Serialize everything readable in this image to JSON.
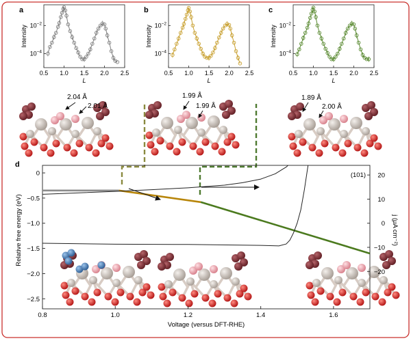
{
  "panel_labels": {
    "a": "a",
    "b": "b",
    "c": "c",
    "d": "d"
  },
  "colors": {
    "frame": "#c9302c",
    "panel_a": "#808080",
    "panel_b": "#c8a030",
    "panel_c": "#5a8a32",
    "dash_b": "#8a8a40",
    "dash_c": "#4e7a30",
    "line_gray": "#8c8c8c",
    "line_gold": "#b8860b",
    "line_green": "#4b7a1e",
    "current": "#222222",
    "atom_dark": "#7a2a30",
    "atom_pink": "#e8a0a8",
    "atom_silver": "#c8c0b8",
    "atom_red": "#d81e1e",
    "atom_blue": "#3a6ea8"
  },
  "structures": {
    "a": {
      "bond1": "2.04 Å",
      "bond2": "2.01 Å"
    },
    "b": {
      "bond1": "1.99 Å",
      "bond2": "1.99 Å"
    },
    "c": {
      "bond1": "1.89 Å",
      "bond2": "2.00 Å"
    }
  },
  "chart_data": [
    {
      "type": "scatter",
      "panel": "a",
      "xlabel": "L",
      "ylabel": "Intensity",
      "xlim": [
        0.5,
        2.5
      ],
      "xticks": [
        "0.5",
        "1.0",
        "1.5",
        "2.0",
        "2.5"
      ],
      "yscale": "log",
      "ylim": [
        1e-05,
        0.3
      ],
      "yticks": [
        {
          "value": 0.01,
          "label": "10",
          "exp": "−2"
        },
        {
          "value": 0.0001,
          "label": "10",
          "exp": "−4"
        }
      ],
      "series": [
        {
          "x": [
            0.6,
            0.65,
            0.7,
            0.75,
            0.8,
            0.85,
            0.88,
            0.92,
            0.95,
            0.98,
            1.0,
            1.03,
            1.06,
            1.1,
            1.15,
            1.2,
            1.25,
            1.3,
            1.35,
            1.4,
            1.45,
            1.5,
            1.55,
            1.6,
            1.65,
            1.7,
            1.75,
            1.8,
            1.85,
            1.9,
            1.95,
            2.0,
            2.03,
            2.07,
            2.12,
            2.17,
            2.22,
            2.27,
            2.32
          ],
          "y": [
            0.0001,
            0.0003,
            0.0006,
            0.0015,
            0.003,
            0.008,
            0.015,
            0.04,
            0.08,
            0.15,
            0.2,
            0.12,
            0.05,
            0.012,
            0.004,
            0.0015,
            0.0006,
            0.00025,
            0.00012,
            6e-05,
            4e-05,
            4e-05,
            6e-05,
            0.0001,
            0.0002,
            0.0005,
            0.0012,
            0.003,
            0.006,
            0.01,
            0.014,
            0.012,
            0.006,
            0.002,
            0.0006,
            0.00015,
            5e-05,
            3e-05,
            2.5e-05
          ]
        }
      ]
    },
    {
      "type": "scatter",
      "panel": "b",
      "xlabel": "L",
      "ylabel": "Intensity",
      "xlim": [
        0.5,
        2.5
      ],
      "xticks": [
        "0.5",
        "1.0",
        "1.5",
        "2.0",
        "2.5"
      ],
      "yscale": "log",
      "ylim": [
        1e-05,
        0.3
      ],
      "yticks": [
        {
          "value": 0.01,
          "label": "10",
          "exp": "−2"
        },
        {
          "value": 0.0001,
          "label": "10",
          "exp": "−4"
        }
      ],
      "series": [
        {
          "x": [
            0.6,
            0.65,
            0.7,
            0.75,
            0.8,
            0.85,
            0.88,
            0.92,
            0.95,
            0.98,
            1.0,
            1.03,
            1.06,
            1.1,
            1.15,
            1.2,
            1.25,
            1.3,
            1.35,
            1.4,
            1.45,
            1.5,
            1.55,
            1.6,
            1.65,
            1.7,
            1.75,
            1.8,
            1.85,
            1.9,
            1.95,
            2.0,
            2.03,
            2.07,
            2.12,
            2.17,
            2.22,
            2.27
          ],
          "y": [
            8e-05,
            0.0002,
            0.0005,
            0.0012,
            0.003,
            0.007,
            0.013,
            0.03,
            0.06,
            0.12,
            0.18,
            0.1,
            0.04,
            0.01,
            0.003,
            0.0012,
            0.0005,
            0.00022,
            0.0001,
            6e-05,
            5e-05,
            5e-05,
            7e-05,
            0.00012,
            0.00025,
            0.0006,
            0.0014,
            0.003,
            0.006,
            0.01,
            0.013,
            0.011,
            0.006,
            0.002,
            0.0006,
            0.00015,
            5e-05,
            2e-05
          ]
        }
      ]
    },
    {
      "type": "scatter",
      "panel": "c",
      "xlabel": "L",
      "ylabel": "Intensity",
      "xlim": [
        0.5,
        2.5
      ],
      "xticks": [
        "0.5",
        "1.0",
        "1.5",
        "2.0",
        "2.5"
      ],
      "yscale": "log",
      "ylim": [
        1e-05,
        0.3
      ],
      "yticks": [
        {
          "value": 0.01,
          "label": "10",
          "exp": "−2"
        },
        {
          "value": 0.0001,
          "label": "10",
          "exp": "−4"
        }
      ],
      "series": [
        {
          "x": [
            0.6,
            0.65,
            0.7,
            0.75,
            0.8,
            0.85,
            0.88,
            0.92,
            0.95,
            0.98,
            1.0,
            1.03,
            1.06,
            1.1,
            1.15,
            1.2,
            1.25,
            1.3,
            1.35,
            1.4,
            1.45,
            1.5,
            1.55,
            1.6,
            1.65,
            1.7,
            1.75,
            1.8,
            1.85,
            1.9,
            1.95,
            2.0,
            2.03,
            2.07,
            2.12,
            2.17,
            2.22,
            2.27,
            2.32,
            2.37
          ],
          "y": [
            9e-05,
            0.0002,
            0.0005,
            0.0013,
            0.003,
            0.007,
            0.014,
            0.035,
            0.07,
            0.13,
            0.19,
            0.1,
            0.04,
            0.01,
            0.003,
            0.0012,
            0.0005,
            0.00022,
            0.00011,
            6e-05,
            4e-05,
            4e-05,
            6e-05,
            0.0001,
            0.00022,
            0.0005,
            0.0012,
            0.003,
            0.006,
            0.01,
            0.014,
            0.012,
            0.006,
            0.002,
            0.0006,
            0.0002,
            8e-05,
            5e-05,
            4e-05,
            4e-05
          ]
        }
      ]
    },
    {
      "type": "line",
      "panel": "d",
      "xlabel": "Voltage (versus DFT-RHE)",
      "ylabel": "Relative free energy (eV)",
      "y2label": "j (μA cm⁻²)",
      "annotation": "(101)",
      "xlim": [
        0.8,
        1.7
      ],
      "ylim": [
        -2.7,
        0.15
      ],
      "y2lim": [
        -35.5,
        24
      ],
      "xticks": [
        "0.8",
        "1.0",
        "1.2",
        "1.4",
        "1.6"
      ],
      "xtick_values": [
        0.8,
        1.0,
        1.2,
        1.4,
        1.6
      ],
      "yticks": [
        "0",
        "−0.5",
        "−1.0",
        "−1.5",
        "−2.0",
        "−2.5"
      ],
      "ytick_values": [
        0,
        -0.5,
        -1.0,
        -1.5,
        -2.0,
        -2.5
      ],
      "y2ticks": [
        "20",
        "10",
        "0",
        "−10",
        "−20"
      ],
      "y2tick_values": [
        20,
        10,
        0,
        -10,
        -20
      ],
      "series": [
        {
          "name": "",
          "color": "gray",
          "x": [
            0.8,
            1.01
          ],
          "y": [
            -0.35,
            -0.35
          ]
        },
        {
          "name": "",
          "color": "gold",
          "x": [
            1.01,
            1.235
          ],
          "y": [
            -0.35,
            -0.58
          ]
        },
        {
          "name": "",
          "color": "green",
          "x": [
            1.235,
            1.7
          ],
          "y": [
            -0.58,
            -1.6
          ]
        },
        {
          "name": "",
          "color": "current",
          "axis": "right",
          "x": [
            0.8,
            0.9,
            1.0,
            1.1,
            1.2,
            1.3,
            1.35,
            1.4,
            1.44,
            1.46,
            1.47,
            1.475
          ],
          "y": [
            12.0,
            12.6,
            13.2,
            13.9,
            14.7,
            15.8,
            16.8,
            18.3,
            20.5,
            22.4,
            23.3,
            24.0
          ]
        },
        {
          "name": "",
          "color": "current",
          "axis": "right",
          "x": [
            0.8,
            1.0,
            1.2,
            1.4,
            1.45,
            1.47,
            1.48,
            1.49,
            1.5,
            1.51,
            1.52,
            1.53
          ],
          "y": [
            -8.3,
            -8.7,
            -8.8,
            -9.2,
            -9.4,
            -8.6,
            -7.0,
            -4.0,
            0.0,
            5.5,
            14.0,
            24.0
          ]
        }
      ]
    }
  ]
}
